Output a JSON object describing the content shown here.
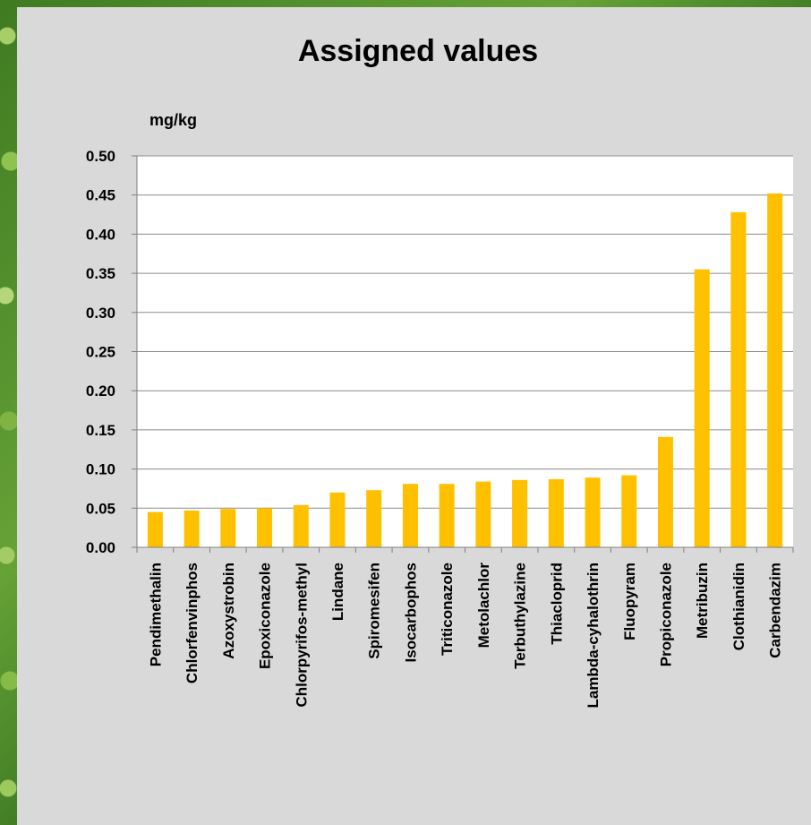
{
  "chart_data": {
    "type": "bar",
    "title": "Assigned values",
    "ylabel": "mg/kg",
    "xlabel": "",
    "ylim": [
      0,
      0.5
    ],
    "yticks": [
      "0.00",
      "0.05",
      "0.10",
      "0.15",
      "0.20",
      "0.25",
      "0.30",
      "0.35",
      "0.40",
      "0.45",
      "0.50"
    ],
    "grid": true,
    "bar_color": "#ffc000",
    "categories": [
      "Pendimethalin",
      "Chlorfenvinphos",
      "Azoxystrobin",
      "Epoxiconazole",
      "Chlorpyrifos-methyl",
      "Lindane",
      "Spiromesifen",
      "Isocarbophos",
      "Triticonazole",
      "Metolachlor",
      "Terbuthylazine",
      "Thiacloprid",
      "Lambda-cyhalothrin",
      "Fluopyram",
      "Propiconazole",
      "Metribuzin",
      "Clothianidin",
      "Carbendazim"
    ],
    "values": [
      0.045,
      0.047,
      0.049,
      0.05,
      0.054,
      0.07,
      0.073,
      0.081,
      0.081,
      0.084,
      0.086,
      0.087,
      0.089,
      0.092,
      0.141,
      0.355,
      0.428,
      0.452
    ]
  }
}
